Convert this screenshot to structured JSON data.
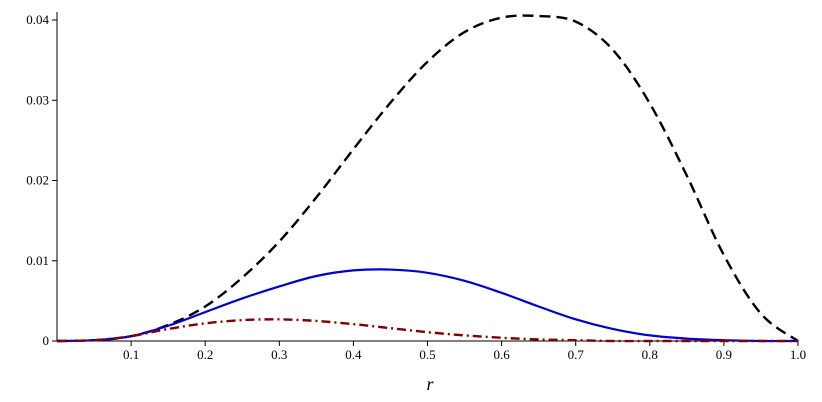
{
  "chart_data": {
    "type": "line",
    "title": "",
    "xlabel": "r",
    "ylabel": "",
    "xlim": [
      0.0,
      1.0
    ],
    "ylim": [
      0.0,
      0.041
    ],
    "grid": false,
    "x_ticks": [
      "0.1",
      "0.2",
      "0.3",
      "0.4",
      "0.5",
      "0.6",
      "0.7",
      "0.8",
      "0.9",
      "1.0"
    ],
    "y_ticks": [
      "0",
      "0.01",
      "0.02",
      "0.03",
      "0.04"
    ],
    "x_tick_values": [
      0.1,
      0.2,
      0.3,
      0.4,
      0.5,
      0.6,
      0.7,
      0.8,
      0.9,
      1.0
    ],
    "y_tick_values": [
      0,
      0.01,
      0.02,
      0.03,
      0.04
    ],
    "x": [
      0.0,
      0.05,
      0.1,
      0.15,
      0.2,
      0.25,
      0.3,
      0.35,
      0.4,
      0.45,
      0.5,
      0.55,
      0.6,
      0.65,
      0.7,
      0.75,
      0.8,
      0.85,
      0.9,
      0.95,
      1.0
    ],
    "series": [
      {
        "color": "#000000",
        "style": "dashed",
        "values": [
          0.0,
          0.0001,
          0.0006,
          0.002,
          0.0043,
          0.0079,
          0.0124,
          0.0179,
          0.0239,
          0.0297,
          0.0348,
          0.0385,
          0.0403,
          0.0405,
          0.0398,
          0.0363,
          0.0296,
          0.0206,
          0.0107,
          0.0034,
          0.0
        ]
      },
      {
        "color": "#0000cc",
        "style": "solid",
        "values": [
          0.0,
          0.0001,
          0.0006,
          0.0019,
          0.0036,
          0.0053,
          0.0068,
          0.0081,
          0.0088,
          0.0089,
          0.0085,
          0.0075,
          0.006,
          0.0043,
          0.0027,
          0.0015,
          0.0007,
          0.0003,
          0.0001,
          0.0,
          0.0
        ]
      },
      {
        "color": "#800000",
        "style": "dash-dot",
        "values": [
          0.0,
          0.0001,
          0.0006,
          0.0015,
          0.0022,
          0.0026,
          0.0027,
          0.0025,
          0.0021,
          0.0016,
          0.0011,
          0.0007,
          0.0004,
          0.0002,
          0.0001,
          0.0,
          0.0,
          0.0,
          0.0,
          0.0,
          0.0
        ]
      }
    ]
  }
}
